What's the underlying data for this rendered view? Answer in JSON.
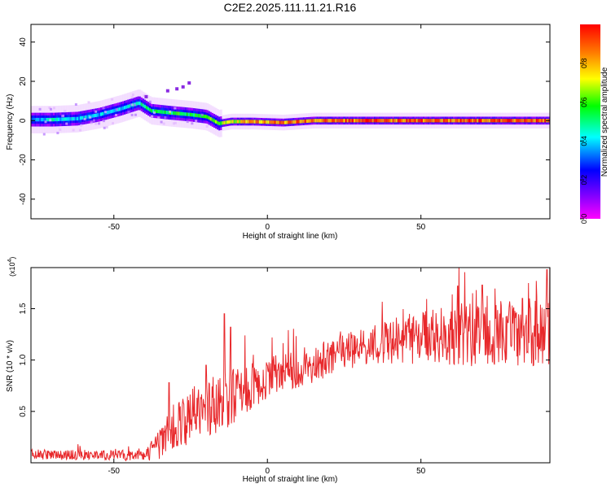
{
  "title": "C2E2.2025.111.11.21.R16",
  "chart_data": [
    {
      "type": "heatmap",
      "xlabel": "Height of straight line (km)",
      "ylabel": "Frequency (Hz)",
      "xlim": [
        -77,
        92
      ],
      "ylim": [
        -50,
        49
      ],
      "x_ticks": [
        -50,
        0,
        50
      ],
      "y_ticks": [
        -40,
        -20,
        0,
        20,
        40
      ],
      "colorbar": {
        "label": "Normalized spectral amplitude",
        "range": [
          0,
          1
        ],
        "ticks": [
          "0.0",
          "0.2",
          "0.4",
          "0.6",
          "0.8"
        ],
        "colormap": [
          "#ff00ff",
          "#8000ff",
          "#0000ff",
          "#00ffff",
          "#00ff00",
          "#ffff00",
          "#ff8000",
          "#ff0000"
        ]
      },
      "ridge": [
        {
          "x": -77,
          "f": 0.5,
          "amp": 0.35
        },
        {
          "x": -70,
          "f": 0.5,
          "amp": 0.45
        },
        {
          "x": -62,
          "f": 1,
          "amp": 0.4
        },
        {
          "x": -55,
          "f": 3,
          "amp": 0.4
        },
        {
          "x": -48,
          "f": 6,
          "amp": 0.4
        },
        {
          "x": -42,
          "f": 9,
          "amp": 0.45
        },
        {
          "x": -38,
          "f": 5,
          "amp": 0.5
        },
        {
          "x": -32,
          "f": 4,
          "amp": 0.55
        },
        {
          "x": -25,
          "f": 3,
          "amp": 0.55
        },
        {
          "x": -20,
          "f": 2,
          "amp": 0.55
        },
        {
          "x": -16,
          "f": -1.5,
          "amp": 0.65
        },
        {
          "x": -12,
          "f": -0.5,
          "amp": 0.7
        },
        {
          "x": -5,
          "f": -0.5,
          "amp": 0.8
        },
        {
          "x": 5,
          "f": -1,
          "amp": 0.85
        },
        {
          "x": 15,
          "f": 0,
          "amp": 0.85
        },
        {
          "x": 30,
          "f": 0,
          "amp": 0.9
        },
        {
          "x": 50,
          "f": 0,
          "amp": 0.9
        },
        {
          "x": 70,
          "f": 0,
          "amp": 0.9
        },
        {
          "x": 92,
          "f": 0,
          "amp": 0.9
        }
      ]
    },
    {
      "type": "line",
      "xlabel": "Height of straight line (km)",
      "ylabel": "SNR (10 * v/v)",
      "y_multiplier": "(x10",
      "y_multiplier_exp": "4",
      "xlim": [
        -77,
        92
      ],
      "ylim": [
        0,
        1.9
      ],
      "x_ticks": [
        -50,
        0,
        50
      ],
      "y_ticks": [
        0.5,
        1.0,
        1.5
      ],
      "y_tick_labels": [
        "0.5",
        "1.0",
        "1.5"
      ],
      "color": "#e8282b",
      "trend": [
        {
          "x": -77,
          "y": 0.08
        },
        {
          "x": -40,
          "y": 0.07
        },
        {
          "x": -35,
          "y": 0.18
        },
        {
          "x": -30,
          "y": 0.35
        },
        {
          "x": -20,
          "y": 0.55
        },
        {
          "x": -12,
          "y": 0.62
        },
        {
          "x": -5,
          "y": 0.75
        },
        {
          "x": 0,
          "y": 0.82
        },
        {
          "x": 10,
          "y": 0.92
        },
        {
          "x": 20,
          "y": 1.02
        },
        {
          "x": 30,
          "y": 1.12
        },
        {
          "x": 40,
          "y": 1.18
        },
        {
          "x": 50,
          "y": 1.22
        },
        {
          "x": 60,
          "y": 1.25
        },
        {
          "x": 70,
          "y": 1.25
        },
        {
          "x": 80,
          "y": 1.25
        },
        {
          "x": 92,
          "y": 1.3
        }
      ],
      "noise_amplitude": [
        {
          "x": -77,
          "a": 0.05
        },
        {
          "x": -40,
          "a": 0.05
        },
        {
          "x": -30,
          "a": 0.25
        },
        {
          "x": -15,
          "a": 0.3
        },
        {
          "x": 0,
          "a": 0.2
        },
        {
          "x": 30,
          "a": 0.18
        },
        {
          "x": 60,
          "a": 0.3
        },
        {
          "x": 92,
          "a": 0.35
        }
      ],
      "peaks": [
        {
          "x": -32,
          "y": 0.78
        },
        {
          "x": -20,
          "y": 0.95
        },
        {
          "x": -14,
          "y": 1.45
        },
        {
          "x": -12,
          "y": 1.32
        },
        {
          "x": 62,
          "y": 1.72
        },
        {
          "x": 70,
          "y": 1.73
        },
        {
          "x": 83,
          "y": 1.6
        },
        {
          "x": 91,
          "y": 1.88
        }
      ]
    }
  ]
}
